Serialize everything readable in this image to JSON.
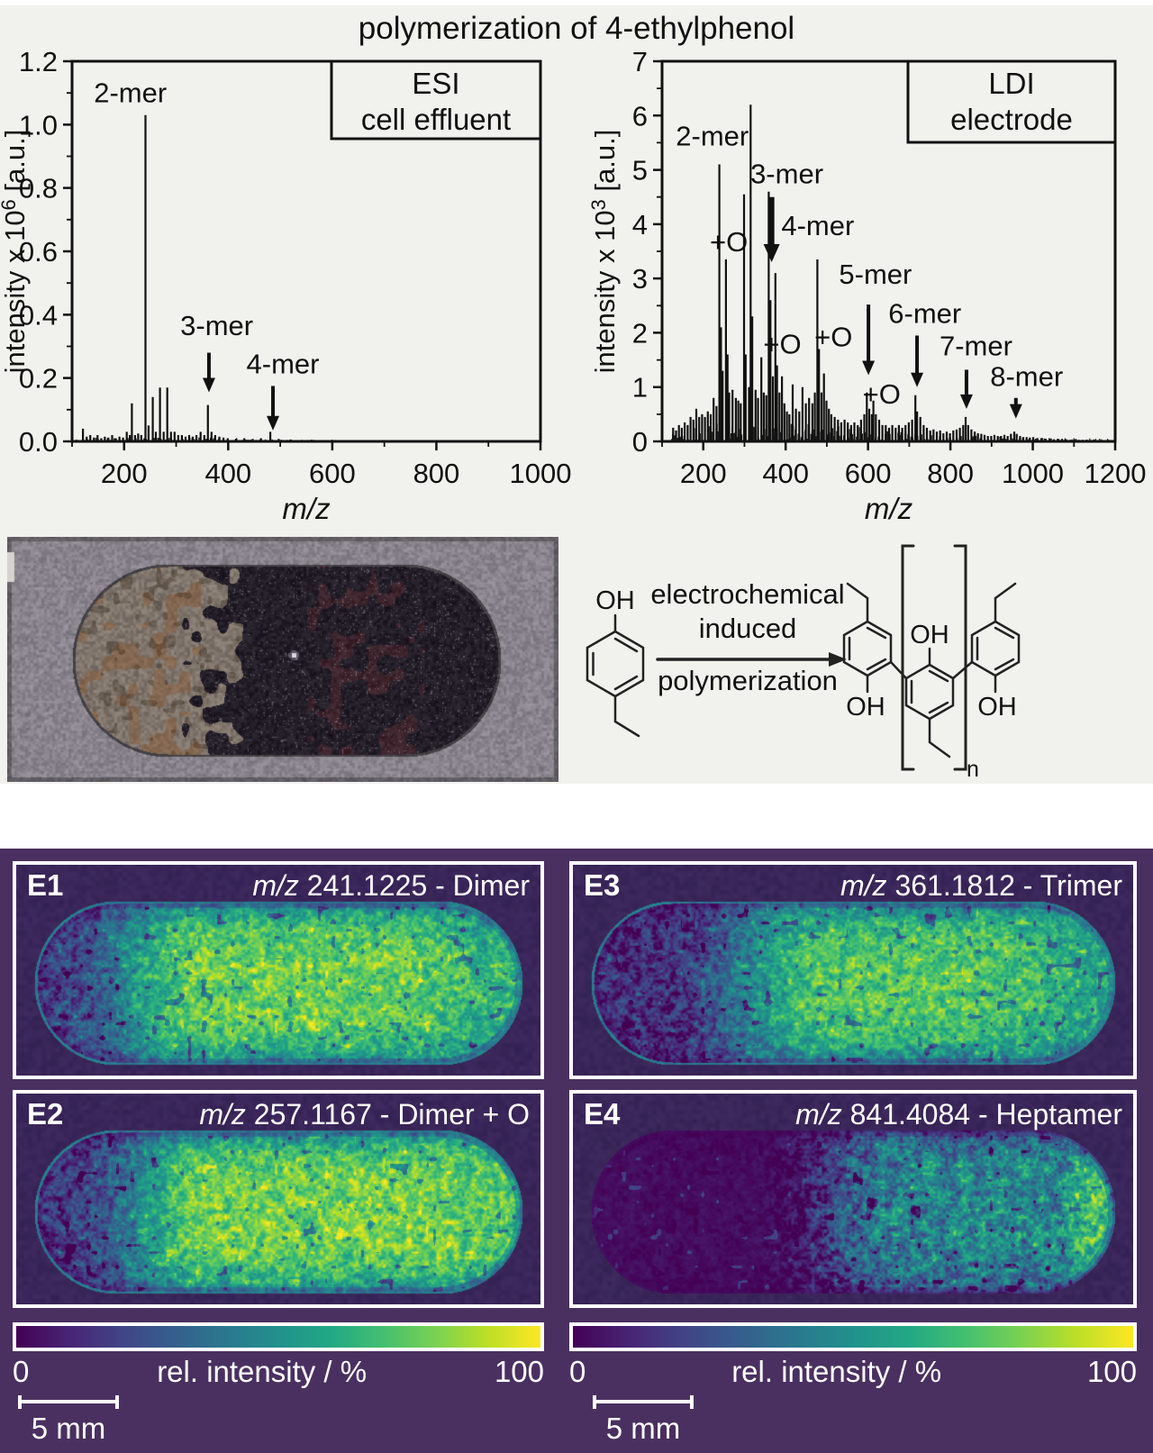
{
  "title": "polymerization of 4-ethylphenol",
  "colors": {
    "figure_bg": "#f1f1ee",
    "msi_section_bg": "#4a3060",
    "msi_panel_bg": "#3a2659",
    "spectrum_ink": "#111111",
    "viridis": [
      "#440154",
      "#482475",
      "#414487",
      "#355f8d",
      "#2a788e",
      "#21918c",
      "#22a884",
      "#44bf70",
      "#7ad151",
      "#bddf26",
      "#fde725"
    ]
  },
  "chart_data": [
    {
      "type": "bar",
      "id": "esi-spectrum",
      "legend": [
        "ESI",
        "cell effluent"
      ],
      "xlabel": "m/z",
      "ylabel_base": "intensity x 10",
      "ylabel_exp": "6",
      "ylabel_unit": " [a.u.]",
      "xlim": [
        100,
        1000
      ],
      "ylim": [
        0,
        1.2
      ],
      "xticks": [
        200,
        400,
        600,
        800,
        1000
      ],
      "yticks": [
        "0.0",
        "0.2",
        "0.4",
        "0.6",
        "0.8",
        "1.0",
        "1.2"
      ],
      "grid": false,
      "legend_position": "top-right",
      "peaks": [
        [
          121,
          0.04
        ],
        [
          128,
          0.015
        ],
        [
          135,
          0.02
        ],
        [
          142,
          0.012
        ],
        [
          149,
          0.02
        ],
        [
          156,
          0.01
        ],
        [
          163,
          0.015
        ],
        [
          170,
          0.012
        ],
        [
          177,
          0.02
        ],
        [
          184,
          0.01
        ],
        [
          191,
          0.015
        ],
        [
          198,
          0.012
        ],
        [
          205,
          0.03
        ],
        [
          211,
          0.02
        ],
        [
          215,
          0.12
        ],
        [
          221,
          0.02
        ],
        [
          227,
          0.025
        ],
        [
          233,
          0.02
        ],
        [
          241,
          1.03
        ],
        [
          247,
          0.05
        ],
        [
          255,
          0.14
        ],
        [
          261,
          0.03
        ],
        [
          269,
          0.17
        ],
        [
          276,
          0.03
        ],
        [
          283,
          0.17
        ],
        [
          290,
          0.03
        ],
        [
          297,
          0.03
        ],
        [
          304,
          0.02
        ],
        [
          311,
          0.02
        ],
        [
          318,
          0.015
        ],
        [
          325,
          0.02
        ],
        [
          332,
          0.015
        ],
        [
          339,
          0.02
        ],
        [
          347,
          0.03
        ],
        [
          354,
          0.02
        ],
        [
          361,
          0.115
        ],
        [
          368,
          0.03
        ],
        [
          375,
          0.02
        ],
        [
          383,
          0.015
        ],
        [
          391,
          0.012
        ],
        [
          399,
          0.01
        ],
        [
          415,
          0.008
        ],
        [
          431,
          0.01
        ],
        [
          447,
          0.008
        ],
        [
          463,
          0.01
        ],
        [
          481,
          0.03
        ],
        [
          497,
          0.008
        ],
        [
          520,
          0.006
        ],
        [
          560,
          0.005
        ],
        [
          600,
          0.005
        ],
        [
          650,
          0.004
        ],
        [
          700,
          0.004
        ],
        [
          750,
          0.003
        ],
        [
          800,
          0.003
        ],
        [
          850,
          0.003
        ],
        [
          900,
          0.003
        ],
        [
          950,
          0.003
        ]
      ],
      "annotations": [
        {
          "text": "2-mer",
          "x": 212,
          "y": 1.07
        },
        {
          "text": "3-mer",
          "x": 378,
          "y": 0.335,
          "arrow": {
            "x": 363,
            "y1": 0.28,
            "y2": 0.155
          }
        },
        {
          "text": "4-mer",
          "x": 505,
          "y": 0.215,
          "arrow": {
            "x": 486,
            "y1": 0.175,
            "y2": 0.035
          }
        }
      ]
    },
    {
      "type": "bar",
      "id": "ldi-spectrum",
      "legend": [
        "LDI",
        "electrode"
      ],
      "xlabel": "m/z",
      "ylabel_base": "intensity x 10",
      "ylabel_exp": "3",
      "ylabel_unit": " [a.u.]",
      "xlim": [
        100,
        1200
      ],
      "ylim": [
        0,
        7
      ],
      "xticks": [
        200,
        400,
        600,
        800,
        1000,
        1200
      ],
      "yticks": [
        "0",
        "1",
        "2",
        "3",
        "4",
        "5",
        "6",
        "7"
      ],
      "grid": false,
      "legend_position": "top-right",
      "peaks": [
        [
          127,
          0.25
        ],
        [
          134,
          0.2
        ],
        [
          141,
          0.3
        ],
        [
          148,
          0.25
        ],
        [
          155,
          0.35
        ],
        [
          162,
          0.3
        ],
        [
          169,
          0.45
        ],
        [
          176,
          0.4
        ],
        [
          183,
          0.6
        ],
        [
          190,
          0.45
        ],
        [
          197,
          0.5
        ],
        [
          204,
          0.45
        ],
        [
          211,
          0.55
        ],
        [
          218,
          0.5
        ],
        [
          225,
          0.8
        ],
        [
          232,
          0.65
        ],
        [
          239,
          5.1
        ],
        [
          243,
          2.1
        ],
        [
          247,
          1.3
        ],
        [
          255,
          3.35
        ],
        [
          259,
          1.6
        ],
        [
          263,
          0.9
        ],
        [
          271,
          0.95
        ],
        [
          279,
          0.8
        ],
        [
          285,
          0.75
        ],
        [
          291,
          0.7
        ],
        [
          299,
          4.55
        ],
        [
          303,
          1.6
        ],
        [
          311,
          1.0
        ],
        [
          315,
          6.2
        ],
        [
          319,
          2.3
        ],
        [
          327,
          0.95
        ],
        [
          333,
          0.8
        ],
        [
          341,
          1.55
        ],
        [
          347,
          0.9
        ],
        [
          353,
          0.85
        ],
        [
          359,
          4.6
        ],
        [
          363,
          2.6
        ],
        [
          369,
          1.2
        ],
        [
          375,
          3.1
        ],
        [
          379,
          1.4
        ],
        [
          385,
          0.9
        ],
        [
          391,
          1.2
        ],
        [
          397,
          0.7
        ],
        [
          403,
          0.55
        ],
        [
          409,
          0.5
        ],
        [
          417,
          1.05
        ],
        [
          425,
          0.6
        ],
        [
          433,
          0.55
        ],
        [
          441,
          1.0
        ],
        [
          449,
          0.7
        ],
        [
          457,
          0.8
        ],
        [
          465,
          0.7
        ],
        [
          471,
          0.9
        ],
        [
          477,
          3.35
        ],
        [
          481,
          1.7
        ],
        [
          487,
          0.9
        ],
        [
          493,
          1.25
        ],
        [
          499,
          0.75
        ],
        [
          505,
          0.6
        ],
        [
          511,
          0.5
        ],
        [
          519,
          0.45
        ],
        [
          527,
          0.4
        ],
        [
          535,
          0.35
        ],
        [
          543,
          0.4
        ],
        [
          551,
          0.35
        ],
        [
          559,
          0.3
        ],
        [
          567,
          0.35
        ],
        [
          575,
          0.3
        ],
        [
          583,
          0.4
        ],
        [
          591,
          0.5
        ],
        [
          597,
          0.9
        ],
        [
          603,
          0.6
        ],
        [
          609,
          0.5
        ],
        [
          613,
          0.75
        ],
        [
          619,
          0.5
        ],
        [
          627,
          0.4
        ],
        [
          635,
          0.3
        ],
        [
          643,
          0.3
        ],
        [
          651,
          0.25
        ],
        [
          659,
          0.3
        ],
        [
          667,
          0.25
        ],
        [
          675,
          0.3
        ],
        [
          683,
          0.25
        ],
        [
          691,
          0.3
        ],
        [
          699,
          0.35
        ],
        [
          707,
          0.4
        ],
        [
          715,
          0.85
        ],
        [
          719,
          0.55
        ],
        [
          727,
          0.45
        ],
        [
          735,
          0.3
        ],
        [
          743,
          0.25
        ],
        [
          751,
          0.2
        ],
        [
          759,
          0.22
        ],
        [
          767,
          0.18
        ],
        [
          775,
          0.2
        ],
        [
          783,
          0.15
        ],
        [
          791,
          0.18
        ],
        [
          799,
          0.15
        ],
        [
          807,
          0.2
        ],
        [
          815,
          0.22
        ],
        [
          823,
          0.25
        ],
        [
          831,
          0.3
        ],
        [
          837,
          0.45
        ],
        [
          843,
          0.3
        ],
        [
          851,
          0.22
        ],
        [
          859,
          0.18
        ],
        [
          867,
          0.15
        ],
        [
          875,
          0.14
        ],
        [
          883,
          0.12
        ],
        [
          891,
          0.1
        ],
        [
          899,
          0.1
        ],
        [
          907,
          0.12
        ],
        [
          915,
          0.1
        ],
        [
          923,
          0.1
        ],
        [
          931,
          0.12
        ],
        [
          939,
          0.1
        ],
        [
          947,
          0.14
        ],
        [
          955,
          0.18
        ],
        [
          961,
          0.14
        ],
        [
          969,
          0.1
        ],
        [
          977,
          0.08
        ],
        [
          985,
          0.08
        ],
        [
          993,
          0.07
        ],
        [
          1001,
          0.08
        ],
        [
          1011,
          0.06
        ],
        [
          1021,
          0.06
        ],
        [
          1031,
          0.05
        ],
        [
          1041,
          0.05
        ],
        [
          1051,
          0.04
        ],
        [
          1061,
          0.05
        ],
        [
          1071,
          0.04
        ],
        [
          1081,
          0.04
        ],
        [
          1091,
          0.03
        ],
        [
          1101,
          0.04
        ],
        [
          1111,
          0.03
        ],
        [
          1121,
          0.03
        ],
        [
          1131,
          0.03
        ],
        [
          1141,
          0.025
        ],
        [
          1151,
          0.03
        ],
        [
          1161,
          0.025
        ],
        [
          1171,
          0.02
        ]
      ],
      "annotations": [
        {
          "text": "2-mer",
          "x": 222,
          "y": 5.45
        },
        {
          "text": "+O",
          "x": 262,
          "y": 3.5
        },
        {
          "text": "3-mer",
          "x": 403,
          "y": 4.75,
          "arrow": {
            "x": 366,
            "y1": 4.5,
            "y2": 3.3,
            "thick": true
          }
        },
        {
          "text": "4-mer",
          "x": 478,
          "y": 3.8
        },
        {
          "text": "+O",
          "x": 392,
          "y": 1.62
        },
        {
          "text": "+O",
          "x": 516,
          "y": 1.75
        },
        {
          "text": "5-mer",
          "x": 618,
          "y": 2.9,
          "arrow": {
            "x": 601,
            "y1": 2.52,
            "y2": 1.22
          }
        },
        {
          "text": "6-mer",
          "x": 738,
          "y": 2.18,
          "arrow": {
            "x": 719,
            "y1": 1.95,
            "y2": 1.0
          }
        },
        {
          "text": "+O",
          "x": 633,
          "y": 0.7
        },
        {
          "text": "7-mer",
          "x": 862,
          "y": 1.58,
          "arrow": {
            "x": 839,
            "y1": 1.32,
            "y2": 0.6
          }
        },
        {
          "text": "8-mer",
          "x": 985,
          "y": 1.02,
          "arrow": {
            "x": 959,
            "y1": 0.8,
            "y2": 0.42
          }
        }
      ]
    }
  ],
  "scheme": {
    "hydroxyl": "OH",
    "line1": "electrochemical",
    "line2": "induced",
    "line3": "polymerization",
    "subscript": "n"
  },
  "msi": {
    "panels": [
      {
        "id": "E1",
        "mz": "m/z",
        "desc": " 241.1225 - Dimer",
        "profile": "dimer",
        "seed": 11
      },
      {
        "id": "E3",
        "mz": "m/z",
        "desc": " 361.1812 - Trimer",
        "profile": "trimer",
        "seed": 33
      },
      {
        "id": "E2",
        "mz": "m/z",
        "desc": " 257.1167 - Dimer + O",
        "profile": "dimer_o",
        "seed": 22
      },
      {
        "id": "E4",
        "mz": "m/z",
        "desc": " 841.4084 - Heptamer",
        "profile": "heptamer",
        "seed": 44
      }
    ],
    "colorbar": {
      "min": "0",
      "label": "rel. intensity / %",
      "max": "100"
    },
    "scalebar": "5 mm"
  }
}
